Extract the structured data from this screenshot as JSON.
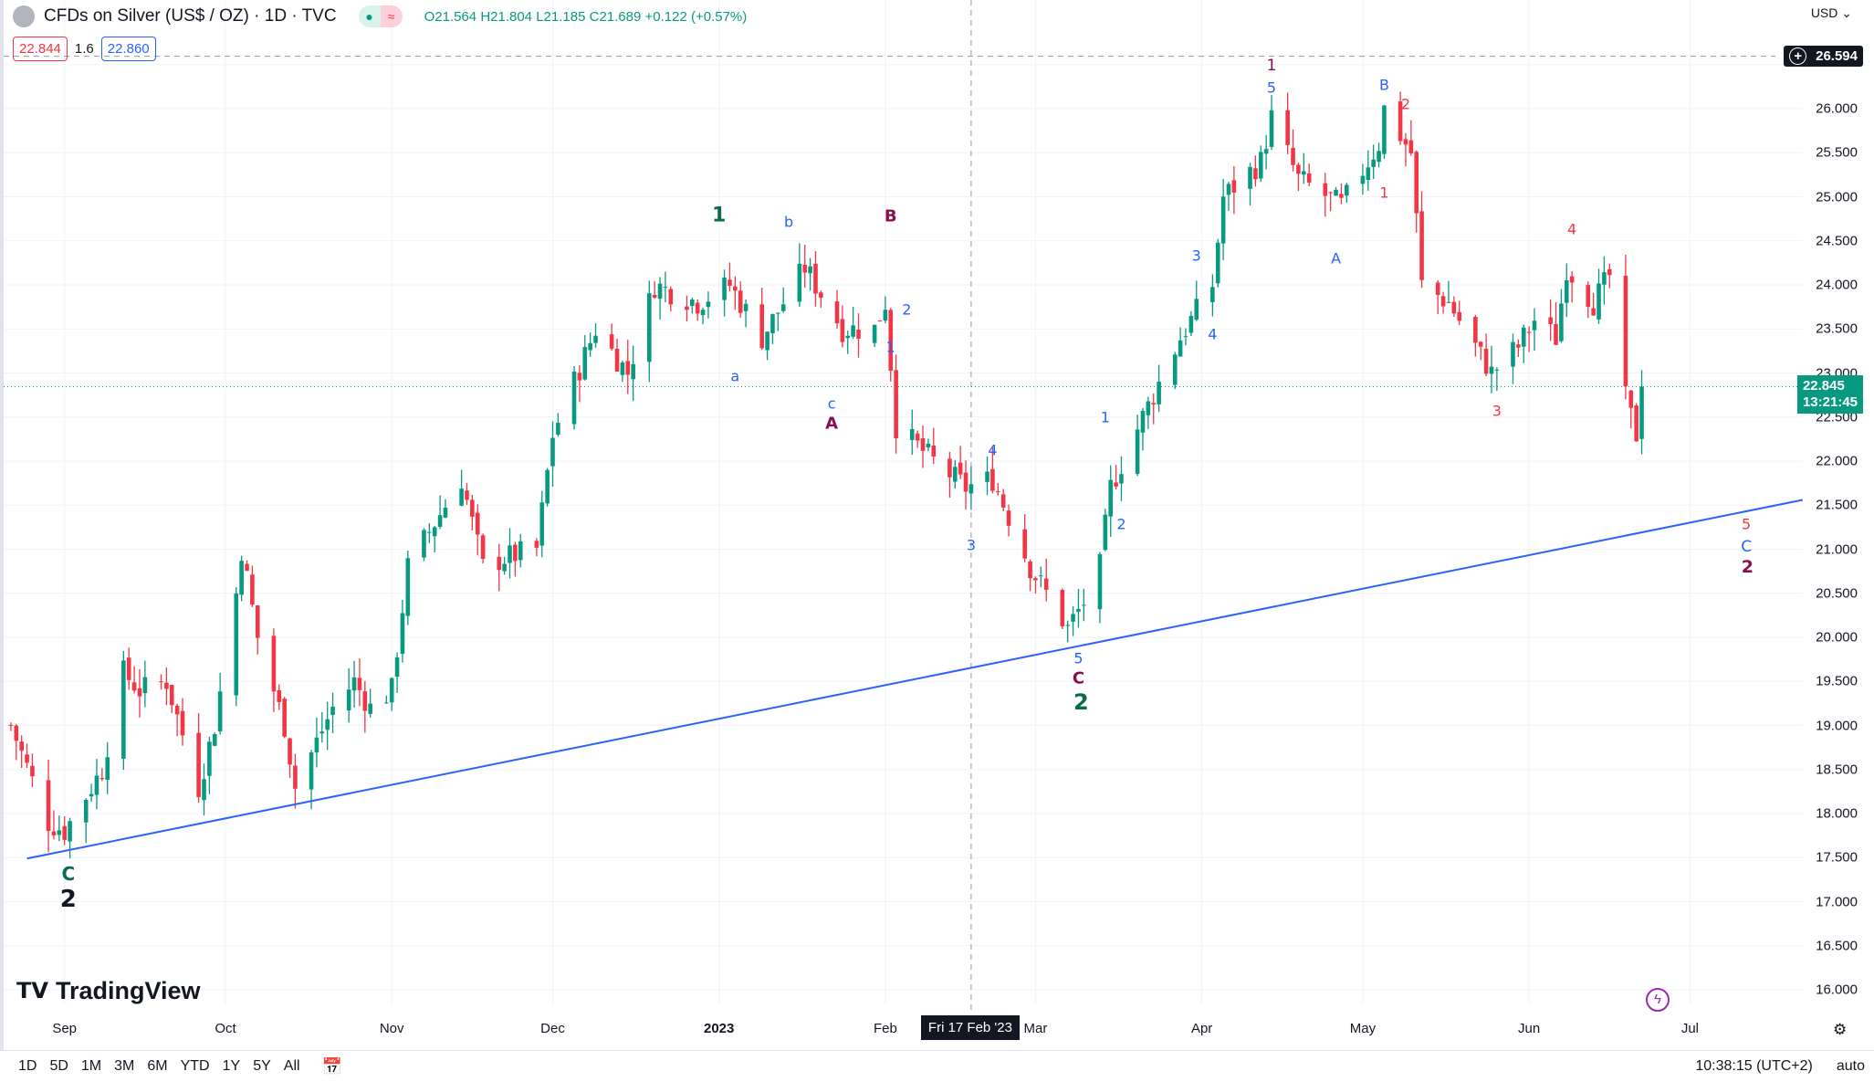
{
  "header": {
    "title": "CFDs on Silver (US$ / OZ) · 1D · TVC",
    "open": "O21.564",
    "high": "H21.804",
    "low": "L21.185",
    "close": "C21.689",
    "change": "+0.122 (+0.57%)",
    "bid": "22.844",
    "spread": "1.6",
    "ask": "22.860"
  },
  "price_axis": {
    "currency": "USD",
    "crosshair_price": "26.594",
    "last_price": "22.845",
    "countdown": "13:21:45",
    "labels": [
      "26.000",
      "25.500",
      "25.000",
      "24.500",
      "24.000",
      "23.500",
      "23.000",
      "22.500",
      "22.000",
      "21.500",
      "21.000",
      "20.500",
      "20.000",
      "19.500",
      "19.000",
      "18.500",
      "18.000",
      "17.500",
      "17.000",
      "16.500",
      "16.000"
    ]
  },
  "time_axis": {
    "labels": [
      {
        "t": "Sep",
        "d": "2022-09-01"
      },
      {
        "t": "Oct",
        "d": "2022-10-01"
      },
      {
        "t": "Nov",
        "d": "2022-11-01"
      },
      {
        "t": "Dec",
        "d": "2022-12-01"
      },
      {
        "t": "2023",
        "d": "2023-01-01"
      },
      {
        "t": "Feb",
        "d": "2023-02-01"
      },
      {
        "t": "Mar",
        "d": "2023-03-01"
      },
      {
        "t": "Apr",
        "d": "2023-04-01"
      },
      {
        "t": "May",
        "d": "2023-05-01"
      },
      {
        "t": "Jun",
        "d": "2023-06-01"
      },
      {
        "t": "Jul",
        "d": "2023-07-01"
      }
    ],
    "crosshair_date": "Fri 17 Feb '23"
  },
  "bottom": {
    "ranges": [
      "1D",
      "5D",
      "1M",
      "3M",
      "6M",
      "YTD",
      "1Y",
      "5Y",
      "All"
    ],
    "clock": "10:38:15 (UTC+2)",
    "auto": "auto"
  },
  "logo": "TradingView",
  "colors": {
    "up": "#089981",
    "down": "#f23645",
    "blue": "#2962ff",
    "maroon": "#880e4f",
    "green": "#0b6b4e",
    "red": "#f23645"
  },
  "chart_data": {
    "type": "candlestick",
    "price_anchors": [
      [
        "2022-08-22",
        19.0
      ],
      [
        "2022-08-29",
        17.9
      ],
      [
        "2022-09-01",
        17.8
      ],
      [
        "2022-09-08",
        18.5
      ],
      [
        "2022-09-12",
        19.6
      ],
      [
        "2022-09-15",
        19.4
      ],
      [
        "2022-09-20",
        19.5
      ],
      [
        "2022-09-26",
        18.3
      ],
      [
        "2022-09-29",
        19.0
      ],
      [
        "2022-10-03",
        20.5
      ],
      [
        "2022-10-04",
        21.0
      ],
      [
        "2022-10-07",
        20.0
      ],
      [
        "2022-10-12",
        19.0
      ],
      [
        "2022-10-14",
        18.3
      ],
      [
        "2022-10-21",
        19.2
      ],
      [
        "2022-10-25",
        19.5
      ],
      [
        "2022-10-28",
        19.2
      ],
      [
        "2022-11-01",
        19.4
      ],
      [
        "2022-11-04",
        20.8
      ],
      [
        "2022-11-10",
        21.4
      ],
      [
        "2022-11-14",
        21.8
      ],
      [
        "2022-11-18",
        20.8
      ],
      [
        "2022-11-22",
        20.9
      ],
      [
        "2022-11-28",
        21.0
      ],
      [
        "2022-12-01",
        22.3
      ],
      [
        "2022-12-05",
        22.9
      ],
      [
        "2022-12-09",
        23.5
      ],
      [
        "2022-12-15",
        23.0
      ],
      [
        "2022-12-20",
        24.0
      ],
      [
        "2022-12-28",
        23.8
      ],
      [
        "2023-01-03",
        24.0
      ],
      [
        "2023-01-09",
        23.4
      ],
      [
        "2023-01-17",
        24.2
      ],
      [
        "2023-01-24",
        23.5
      ],
      [
        "2023-01-30",
        23.5
      ],
      [
        "2023-02-01",
        23.8
      ],
      [
        "2023-02-03",
        22.4
      ],
      [
        "2023-02-10",
        22.0
      ],
      [
        "2023-02-16",
        21.7
      ],
      [
        "2023-02-21",
        21.8
      ],
      [
        "2023-02-28",
        20.8
      ],
      [
        "2023-03-07",
        20.1
      ],
      [
        "2023-03-10",
        20.4
      ],
      [
        "2023-03-13",
        20.8
      ],
      [
        "2023-03-15",
        21.7
      ],
      [
        "2023-03-21",
        22.5
      ],
      [
        "2023-03-28",
        23.4
      ],
      [
        "2023-04-03",
        24.0
      ],
      [
        "2023-04-05",
        25.0
      ],
      [
        "2023-04-12",
        25.4
      ],
      [
        "2023-04-14",
        25.9
      ],
      [
        "2023-04-19",
        25.2
      ],
      [
        "2023-04-27",
        24.9
      ],
      [
        "2023-05-04",
        25.6
      ],
      [
        "2023-05-05",
        26.0
      ],
      [
        "2023-05-10",
        25.5
      ],
      [
        "2023-05-12",
        24.0
      ],
      [
        "2023-05-17",
        23.8
      ],
      [
        "2023-05-25",
        23.0
      ],
      [
        "2023-05-30",
        23.3
      ],
      [
        "2023-06-02",
        23.6
      ],
      [
        "2023-06-06",
        23.4
      ],
      [
        "2023-06-08",
        24.2
      ],
      [
        "2023-06-13",
        23.8
      ],
      [
        "2023-06-16",
        24.1
      ],
      [
        "2023-06-19",
        22.7
      ],
      [
        "2023-06-21",
        22.3
      ],
      [
        "2023-06-22",
        22.85
      ]
    ],
    "ylim": [
      15.5,
      27.1
    ],
    "trendline": [
      [
        -7,
        17.49
      ],
      [
        324,
        21.56
      ]
    ],
    "wave_labels": [
      {
        "t": "C",
        "day": 0.7,
        "p": 17.32,
        "c": "green",
        "s": 20
      },
      {
        "t": "2",
        "day": 0.7,
        "p": 17.03,
        "c": "black",
        "s": 26
      },
      {
        "t": "1",
        "day": 122,
        "p": 24.79,
        "c": "green",
        "s": 22
      },
      {
        "t": "b",
        "day": 135,
        "p": 24.71,
        "c": "blue",
        "s": 16
      },
      {
        "t": "B",
        "day": 154,
        "p": 24.78,
        "c": "maroon",
        "s": 18
      },
      {
        "t": "2",
        "day": 157,
        "p": 23.72,
        "c": "blue",
        "s": 16
      },
      {
        "t": "1",
        "day": 154,
        "p": 23.3,
        "c": "blue",
        "s": 16
      },
      {
        "t": "a",
        "day": 125,
        "p": 22.96,
        "c": "blue",
        "s": 16
      },
      {
        "t": "c",
        "day": 143,
        "p": 22.65,
        "c": "blue",
        "s": 16
      },
      {
        "t": "A",
        "day": 143,
        "p": 22.43,
        "c": "maroon",
        "s": 18
      },
      {
        "t": "4",
        "day": 173,
        "p": 22.12,
        "c": "blue",
        "s": 16
      },
      {
        "t": "3",
        "day": 169,
        "p": 21.05,
        "c": "blue",
        "s": 16
      },
      {
        "t": "5",
        "day": 189,
        "p": 19.76,
        "c": "blue",
        "s": 16
      },
      {
        "t": "C",
        "day": 189,
        "p": 19.53,
        "c": "maroon",
        "s": 18
      },
      {
        "t": "2",
        "day": 189.5,
        "p": 19.26,
        "c": "green",
        "s": 24
      },
      {
        "t": "1",
        "day": 194,
        "p": 22.5,
        "c": "blue",
        "s": 16
      },
      {
        "t": "2",
        "day": 197,
        "p": 21.28,
        "c": "blue",
        "s": 16
      },
      {
        "t": "3",
        "day": 211,
        "p": 24.33,
        "c": "blue",
        "s": 16
      },
      {
        "t": "4",
        "day": 214,
        "p": 23.44,
        "c": "blue",
        "s": 16
      },
      {
        "t": "1",
        "day": 225,
        "p": 26.49,
        "c": "maroon",
        "s": 17
      },
      {
        "t": "5",
        "day": 225,
        "p": 26.24,
        "c": "blue",
        "s": 16
      },
      {
        "t": "A",
        "day": 237,
        "p": 24.3,
        "c": "blue",
        "s": 16
      },
      {
        "t": "B",
        "day": 246,
        "p": 26.27,
        "c": "blue",
        "s": 16
      },
      {
        "t": "2",
        "day": 250,
        "p": 26.05,
        "c": "red",
        "s": 16
      },
      {
        "t": "1",
        "day": 246,
        "p": 25.05,
        "c": "red",
        "s": 16
      },
      {
        "t": "3",
        "day": 267,
        "p": 22.57,
        "c": "red",
        "s": 16
      },
      {
        "t": "4",
        "day": 281,
        "p": 24.63,
        "c": "red",
        "s": 16
      },
      {
        "t": "5",
        "day": 313.5,
        "p": 21.28,
        "c": "red",
        "s": 16
      },
      {
        "t": "C",
        "day": 313.5,
        "p": 21.03,
        "c": "blue",
        "s": 17
      },
      {
        "t": "2",
        "day": 313.7,
        "p": 20.8,
        "c": "maroon",
        "s": 19
      }
    ]
  }
}
